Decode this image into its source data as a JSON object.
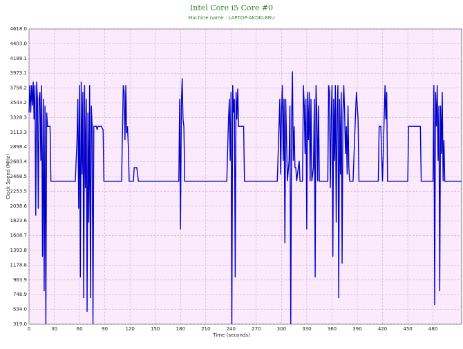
{
  "chart_data": {
    "type": "line",
    "title": "Intel Core i5 Core #0",
    "subtitle": "Machine name : LAPTOP-AKDKLBRU",
    "x_label": "Time (seconds)",
    "y_label": "Clock Speed (MHz)",
    "xlim": [
      0,
      514
    ],
    "ylim": [
      319,
      4618
    ],
    "xticks": [
      0,
      30,
      60,
      90,
      120,
      150,
      180,
      210,
      240,
      270,
      300,
      330,
      360,
      390,
      420,
      450,
      480
    ],
    "yticks": [
      {
        "value": 319,
        "label": "319.0"
      },
      {
        "value": 534,
        "label": "534.0"
      },
      {
        "value": 748.9,
        "label": "748.9"
      },
      {
        "value": 963.9,
        "label": "963.9"
      },
      {
        "value": 1178.8,
        "label": "1178.8"
      },
      {
        "value": 1393.8,
        "label": "1393.8"
      },
      {
        "value": 1608.7,
        "label": "1608.7"
      },
      {
        "value": 1823.6,
        "label": "1823.6"
      },
      {
        "value": 2038.6,
        "label": "2038.6"
      },
      {
        "value": 2253.5,
        "label": "2253.5"
      },
      {
        "value": 2468.5,
        "label": "2468.5"
      },
      {
        "value": 2683.4,
        "label": "2683.4"
      },
      {
        "value": 2898.4,
        "label": "2898.4"
      },
      {
        "value": 3113.3,
        "label": "3113.3"
      },
      {
        "value": 3328.3,
        "label": "3328.3"
      },
      {
        "value": 3543.2,
        "label": "3543.2"
      },
      {
        "value": 3758.2,
        "label": "3758.2"
      },
      {
        "value": 3973.1,
        "label": "3973.1"
      },
      {
        "value": 4188.1,
        "label": "4188.1"
      },
      {
        "value": 4403,
        "label": "4403.0"
      },
      {
        "value": 4618,
        "label": "4618.0"
      }
    ],
    "grid": true,
    "x": [
      0,
      1,
      2,
      3,
      4,
      5,
      6,
      7,
      8,
      9,
      10,
      11,
      12,
      13,
      14,
      15,
      16,
      17,
      18,
      19,
      20,
      21,
      22,
      23,
      25,
      26,
      30,
      40,
      50,
      55,
      57,
      58,
      59,
      60,
      61,
      62,
      63,
      64,
      65,
      66,
      67,
      68,
      69,
      70,
      71,
      72,
      73,
      74,
      75,
      76,
      77,
      80,
      81,
      82,
      86,
      88,
      89,
      110,
      112,
      113,
      114,
      115,
      116,
      117,
      118,
      119,
      124,
      125,
      127,
      128,
      130,
      150,
      170,
      178,
      179,
      180,
      181,
      182,
      183,
      184,
      185,
      210,
      235,
      237,
      238,
      239,
      240,
      241,
      242,
      243,
      244,
      245,
      246,
      247,
      248,
      249,
      250,
      255,
      256,
      295,
      297,
      298,
      299,
      300,
      301,
      302,
      303,
      304,
      305,
      306,
      307,
      309,
      310,
      311,
      312,
      313,
      314,
      315,
      316,
      317,
      318,
      321,
      322,
      325,
      326,
      327,
      328,
      329,
      330,
      331,
      332,
      333,
      334,
      335,
      336,
      338,
      339,
      340,
      341,
      342,
      343,
      344,
      345,
      350,
      355,
      356,
      357,
      358,
      359,
      360,
      361,
      362,
      363,
      364,
      365,
      366,
      367,
      368,
      369,
      370,
      371,
      372,
      373,
      374,
      375,
      376,
      377,
      378,
      379,
      380,
      381,
      385,
      388,
      389,
      390,
      391,
      392,
      410,
      415,
      416,
      418,
      420,
      423,
      424,
      425,
      426,
      428,
      440,
      450,
      451,
      455,
      465,
      466,
      480,
      481,
      482,
      483,
      484,
      485,
      486,
      487,
      488,
      489,
      490,
      491,
      492,
      493,
      494,
      500,
      514
    ],
    "series": [
      {
        "color": "#0000c8",
        "values": [
          3400,
          3800,
          3400,
          3800,
          3500,
          3850,
          3300,
          3800,
          1900,
          3850,
          3600,
          2000,
          3600,
          3700,
          2700,
          3800,
          1300,
          3600,
          800,
          3500,
          319,
          3400,
          3200,
          3200,
          3200,
          2400,
          2400,
          2400,
          2400,
          2400,
          3000,
          3600,
          2000,
          3800,
          1000,
          3850,
          2500,
          3700,
          700,
          3800,
          2300,
          3600,
          500,
          3400,
          1800,
          3800,
          700,
          3500,
          3200,
          319,
          3200,
          3200,
          3150,
          3200,
          3200,
          3150,
          2400,
          2400,
          3800,
          3700,
          3000,
          3800,
          3100,
          3200,
          2900,
          2400,
          2400,
          2600,
          2600,
          2600,
          2400,
          2400,
          2400,
          2400,
          3600,
          1700,
          3500,
          3900,
          3300,
          3200,
          2400,
          2400,
          2400,
          3300,
          3600,
          2700,
          3700,
          319,
          3800,
          3400,
          3600,
          1000,
          3700,
          3300,
          3750,
          3200,
          3200,
          3200,
          2400,
          2400,
          3200,
          3600,
          2500,
          3400,
          3800,
          2700,
          3600,
          1500,
          3600,
          3000,
          2400,
          2700,
          3500,
          319,
          3300,
          4000,
          2700,
          3200,
          2600,
          2600,
          2400,
          2700,
          2400,
          2400,
          3800,
          3500,
          2800,
          3600,
          1700,
          3700,
          3000,
          3700,
          2400,
          3600,
          2400,
          2600,
          3600,
          1000,
          3800,
          3400,
          2400,
          3500,
          2400,
          2400,
          2400,
          3800,
          3700,
          2300,
          3300,
          3800,
          1300,
          3600,
          2700,
          3800,
          1800,
          3400,
          3800,
          700,
          3600,
          2500,
          3700,
          1200,
          3400,
          3800,
          3400,
          2800,
          3200,
          2500,
          3500,
          2600,
          2400,
          2400,
          3400,
          3700,
          3500,
          3300,
          2400,
          2400,
          2400,
          3200,
          3200,
          2400,
          3800,
          3300,
          3700,
          2400,
          2400,
          2400,
          2400,
          3200,
          3200,
          3200,
          2400,
          2400,
          3800,
          600,
          3700,
          3200,
          3800,
          2700,
          3500,
          800,
          3500,
          2800,
          3700,
          2400,
          3000,
          2400,
          2400,
          2400
        ]
      }
    ]
  }
}
